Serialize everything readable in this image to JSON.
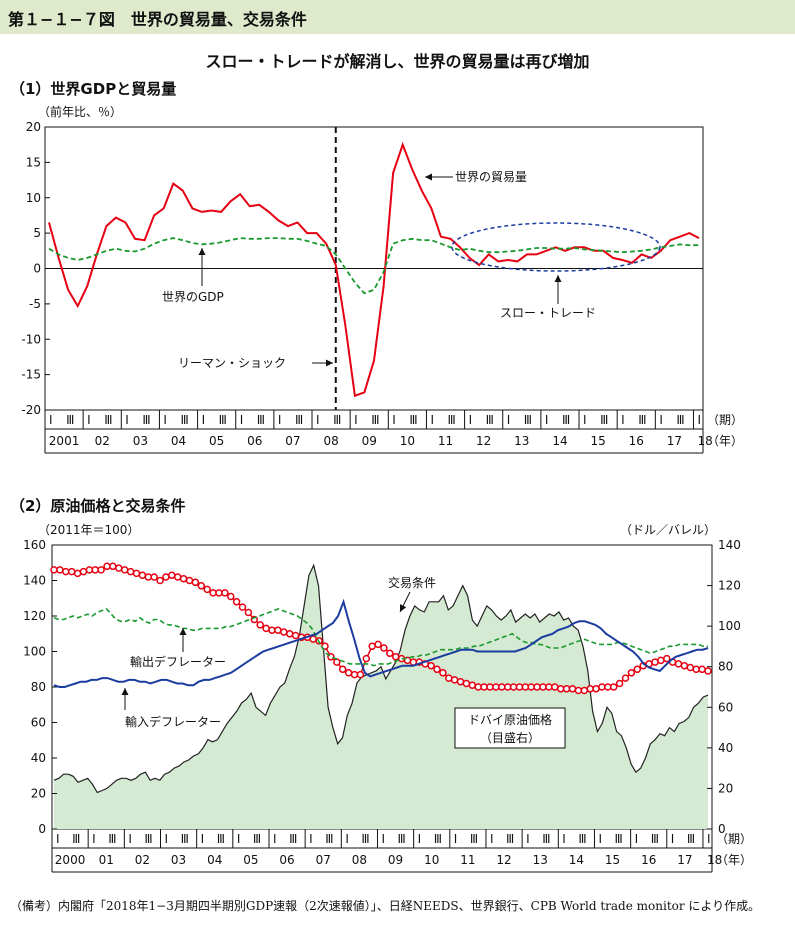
{
  "header": {
    "title": "第１−１−７図　世界の貿易量、交易条件",
    "subtitle": "スロー・トレードが解消し、世界の貿易量は再び増加"
  },
  "footnote": {
    "text": "（備考）内閣府「2018年1−3月期四半期別GDP速報（2次速報値）」、日経NEEDS、世界銀行、CPB World trade monitor により作成。"
  },
  "chart_data": [
    {
      "type": "line",
      "title": "（1）世界GDPと貿易量",
      "ylabel": "（前年比、％）",
      "ylim": [
        -20,
        20
      ],
      "yticks": [
        "20",
        "15",
        "10",
        "5",
        "0",
        "-5",
        "-10",
        "-15",
        "-20"
      ],
      "quarter_labels": [
        "I",
        "Ⅲ"
      ],
      "period_label": "（期）",
      "year_label": "（年）",
      "years": [
        "2001",
        "02",
        "03",
        "04",
        "05",
        "06",
        "07",
        "08",
        "09",
        "10",
        "11",
        "12",
        "13",
        "14",
        "15",
        "16",
        "17",
        "18"
      ],
      "x": [
        "2001Q1",
        "2001Q2",
        "2001Q3",
        "2001Q4",
        "2002Q1",
        "2002Q2",
        "2002Q3",
        "2002Q4",
        "2003Q1",
        "2003Q2",
        "2003Q3",
        "2003Q4",
        "2004Q1",
        "2004Q2",
        "2004Q3",
        "2004Q4",
        "2005Q1",
        "2005Q2",
        "2005Q3",
        "2005Q4",
        "2006Q1",
        "2006Q2",
        "2006Q3",
        "2006Q4",
        "2007Q1",
        "2007Q2",
        "2007Q3",
        "2007Q4",
        "2008Q1",
        "2008Q2",
        "2008Q3",
        "2008Q4",
        "2009Q1",
        "2009Q2",
        "2009Q3",
        "2009Q4",
        "2010Q1",
        "2010Q2",
        "2010Q3",
        "2010Q4",
        "2011Q1",
        "2011Q2",
        "2011Q3",
        "2011Q4",
        "2012Q1",
        "2012Q2",
        "2012Q3",
        "2012Q4",
        "2013Q1",
        "2013Q2",
        "2013Q3",
        "2013Q4",
        "2014Q1",
        "2014Q2",
        "2014Q3",
        "2014Q4",
        "2015Q1",
        "2015Q2",
        "2015Q3",
        "2015Q4",
        "2016Q1",
        "2016Q2",
        "2016Q3",
        "2016Q4",
        "2017Q1",
        "2017Q2",
        "2017Q3",
        "2017Q4",
        "2018Q1"
      ],
      "series": [
        {
          "name": "世界の貿易量",
          "color": "#e60012",
          "style": "solid",
          "values": [
            6.5,
            1.5,
            -3.0,
            -5.3,
            -2.5,
            2.0,
            6.0,
            7.2,
            6.5,
            4.2,
            4.0,
            7.5,
            8.5,
            12.0,
            11.0,
            8.5,
            8.0,
            8.2,
            8.0,
            9.5,
            10.5,
            8.8,
            9.0,
            8.0,
            6.8,
            6.0,
            6.5,
            5.0,
            5.0,
            3.5,
            0.5,
            -8.0,
            -18.0,
            -17.5,
            -13.0,
            -2.5,
            13.5,
            17.5,
            14.0,
            11.0,
            8.5,
            4.5,
            4.2,
            3.0,
            1.5,
            0.5,
            2.0,
            1.0,
            1.2,
            1.0,
            2.0,
            2.0,
            2.5,
            3.0,
            2.5,
            3.0,
            3.0,
            2.5,
            2.5,
            1.5,
            1.2,
            0.8,
            2.0,
            1.5,
            2.5,
            4.0,
            4.5,
            5.0,
            4.3
          ]
        },
        {
          "name": "世界のGDP",
          "color": "#1a9a2e",
          "style": "dashed",
          "values": [
            2.8,
            2.0,
            1.5,
            1.2,
            1.5,
            2.0,
            2.5,
            2.8,
            2.5,
            2.4,
            2.8,
            3.5,
            4.0,
            4.3,
            4.0,
            3.6,
            3.4,
            3.5,
            3.7,
            4.0,
            4.3,
            4.2,
            4.2,
            4.3,
            4.3,
            4.2,
            4.2,
            3.9,
            3.5,
            3.2,
            2.0,
            0.0,
            -2.0,
            -3.5,
            -3.0,
            -0.5,
            3.5,
            4.0,
            4.2,
            4.0,
            4.0,
            3.5,
            3.0,
            2.6,
            2.8,
            2.5,
            2.3,
            2.3,
            2.4,
            2.5,
            2.7,
            2.9,
            2.9,
            2.8,
            2.8,
            2.9,
            2.7,
            2.6,
            2.5,
            2.4,
            2.3,
            2.4,
            2.5,
            2.7,
            3.0,
            3.2,
            3.4,
            3.3,
            3.3
          ]
        }
      ],
      "annotations": {
        "trade_label": "世界の貿易量",
        "gdp_label": "世界のGDP",
        "lehman_label": "リーマン・ショック",
        "slow_trade_label": "スロー・トレード"
      }
    },
    {
      "type": "line",
      "title": "（2）原油価格と交易条件",
      "ylabel_left": "（2011年＝100）",
      "ylabel_right": "（ドル／バレル）",
      "ylim_left": [
        0,
        160
      ],
      "ylim_right": [
        0,
        140
      ],
      "yticks_left": [
        "160",
        "140",
        "120",
        "100",
        "80",
        "60",
        "40",
        "20",
        "0"
      ],
      "yticks_right": [
        "140",
        "120",
        "100",
        "80",
        "60",
        "40",
        "20",
        "0"
      ],
      "quarter_labels": [
        "I",
        "Ⅲ"
      ],
      "period_label": "（期）",
      "year_label": "（年）",
      "years": [
        "2000",
        "01",
        "02",
        "03",
        "04",
        "05",
        "06",
        "07",
        "08",
        "09",
        "10",
        "11",
        "12",
        "13",
        "14",
        "15",
        "16",
        "17",
        "18"
      ],
      "x_monthly_start": "2000-01",
      "oil_name": "ドバイ原油価格",
      "oil_sub": "（目盛右）",
      "oil_color": "#d5ead3",
      "oil_values": [
        24,
        25,
        27,
        27,
        26,
        23,
        24,
        25,
        22,
        18,
        19,
        20,
        22,
        24,
        25,
        25,
        24,
        25,
        27,
        28,
        24,
        25,
        24,
        27,
        28,
        30,
        31,
        33,
        34,
        36,
        37,
        40,
        44,
        43,
        44,
        48,
        52,
        55,
        58,
        62,
        64,
        67,
        60,
        58,
        56,
        62,
        66,
        70,
        72,
        79,
        85,
        95,
        110,
        125,
        130,
        120,
        90,
        60,
        50,
        42,
        45,
        56,
        62,
        72,
        75,
        76,
        77,
        78,
        80,
        74,
        78,
        82,
        88,
        98,
        105,
        110,
        108,
        107,
        112,
        112,
        112,
        115,
        108,
        110,
        115,
        120,
        115,
        103,
        100,
        105,
        110,
        108,
        105,
        103,
        105,
        108,
        102,
        104,
        106,
        104,
        106,
        102,
        104,
        106,
        105,
        107,
        103,
        104,
        100,
        98,
        90,
        78,
        58,
        48,
        52,
        60,
        57,
        48,
        46,
        40,
        32,
        28,
        30,
        35,
        42,
        44,
        47,
        46,
        50,
        48,
        52,
        53,
        55,
        60,
        62,
        65,
        66
      ],
      "series": [
        {
          "name": "交易条件",
          "color": "#e60012",
          "style": "circles",
          "values": [
            146,
            146,
            145,
            145,
            144,
            145,
            146,
            146,
            146,
            148,
            148,
            147,
            146,
            145,
            144,
            143,
            142,
            142,
            140,
            142,
            143,
            142,
            141,
            140,
            139,
            137,
            135,
            133,
            133,
            133,
            131,
            128,
            125,
            122,
            118,
            115,
            113,
            112,
            112,
            111,
            110,
            109,
            108,
            108,
            107,
            106,
            103,
            97,
            94,
            90,
            88,
            87,
            87,
            96,
            103,
            104,
            102,
            99,
            97,
            96,
            95,
            94,
            94,
            93,
            92,
            90,
            88,
            85,
            84,
            83,
            82,
            81,
            80,
            80,
            80,
            80,
            80,
            80,
            80,
            80,
            80,
            80,
            80,
            80,
            80,
            80,
            79,
            79,
            79,
            78,
            78,
            79,
            79,
            80,
            80,
            80,
            82,
            85,
            88,
            90,
            92,
            93,
            94,
            95,
            96,
            94,
            93,
            92,
            91,
            90,
            90,
            89
          ],
          "values_note": ""
        },
        {
          "name": "輸出デフレーター",
          "color": "#1a9a2e",
          "style": "dashed",
          "values": [
            119,
            118,
            118,
            119,
            120,
            119,
            120,
            121,
            120,
            122,
            123,
            124,
            121,
            118,
            117,
            117,
            118,
            117,
            119,
            117,
            116,
            118,
            118,
            116,
            115,
            115,
            114,
            113,
            113,
            112,
            112,
            113,
            113,
            113,
            113,
            113,
            114,
            114,
            115,
            116,
            117,
            118,
            119,
            120,
            121,
            122,
            123,
            124,
            123,
            122,
            121,
            120,
            118,
            116,
            113,
            108,
            103,
            99,
            97,
            96,
            95,
            94,
            93,
            93,
            93,
            93,
            93,
            92,
            93,
            93,
            93,
            94,
            95,
            96,
            96,
            97,
            97,
            98,
            98,
            99,
            100,
            101,
            101,
            101,
            101,
            102,
            102,
            102,
            103,
            103,
            104,
            105,
            106,
            107,
            108,
            109,
            110,
            108,
            106,
            105,
            105,
            104,
            104,
            103,
            102,
            102,
            102,
            103,
            104,
            105,
            106,
            107,
            106,
            105,
            104,
            104,
            104,
            104,
            105,
            105,
            104,
            103,
            102,
            101,
            100,
            99,
            100,
            101,
            102,
            103,
            103,
            104,
            104,
            104,
            104,
            104,
            103,
            103
          ]
        },
        {
          "name": "輸入デフレーター",
          "color": "#1b3da0",
          "style": "solid",
          "values": [
            81,
            80,
            80,
            81,
            82,
            83,
            83,
            84,
            84,
            85,
            85,
            84,
            83,
            83,
            84,
            84,
            83,
            83,
            82,
            83,
            84,
            84,
            83,
            82,
            82,
            81,
            81,
            83,
            84,
            84,
            85,
            86,
            87,
            88,
            90,
            92,
            94,
            96,
            98,
            100,
            101,
            102,
            103,
            104,
            105,
            106,
            107,
            108,
            109,
            110,
            112,
            114,
            116,
            120,
            128,
            117,
            107,
            96,
            88,
            86,
            87,
            88,
            89,
            90,
            91,
            92,
            92,
            92,
            93,
            94,
            95,
            96,
            97,
            98,
            99,
            100,
            101,
            101,
            101,
            100,
            100,
            100,
            100,
            100,
            100,
            100,
            100,
            101,
            102,
            104,
            106,
            108,
            109,
            110,
            112,
            113,
            114,
            116,
            117,
            117,
            116,
            115,
            113,
            110,
            108,
            106,
            104,
            102,
            100,
            97,
            93,
            91,
            90,
            89,
            92,
            95,
            97,
            98,
            99,
            100,
            101,
            101,
            102
          ]
        }
      ],
      "annotations": {
        "tot_label": "交易条件",
        "exp_label": "輸出デフレーター",
        "imp_label": "輸入デフレーター",
        "oil_label": "ドバイ原油価格",
        "oil_sub_label": "（目盛右）"
      }
    }
  ]
}
